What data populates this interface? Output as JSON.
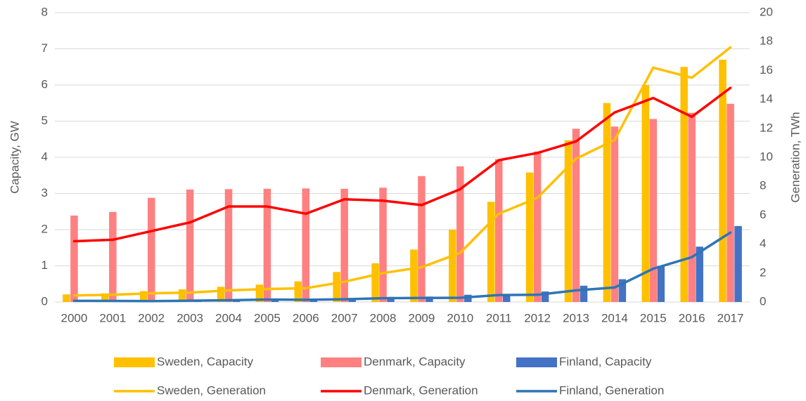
{
  "chart_data": {
    "type": "combo",
    "y_label": "Capacity, GW",
    "y2_label": "Generation, TWh",
    "categories": [
      "2000",
      "2001",
      "2002",
      "2003",
      "2004",
      "2005",
      "2006",
      "2007",
      "2008",
      "2009",
      "2010",
      "2011",
      "2012",
      "2013",
      "2014",
      "2015",
      "2016",
      "2017"
    ],
    "series": [
      {
        "name": "Sweden, Capacity",
        "type": "bar",
        "color": "#ffc000",
        "values": [
          0.21,
          0.24,
          0.3,
          0.35,
          0.42,
          0.48,
          0.57,
          0.83,
          1.07,
          1.45,
          2.0,
          2.77,
          3.58,
          4.47,
          5.5,
          6.0,
          6.5,
          6.7
        ]
      },
      {
        "name": "Denmark, Capacity",
        "type": "bar",
        "color": "#ff8080",
        "values": [
          2.39,
          2.49,
          2.88,
          3.11,
          3.12,
          3.13,
          3.14,
          3.13,
          3.16,
          3.48,
          3.75,
          3.95,
          4.16,
          4.79,
          4.85,
          5.06,
          5.23,
          5.48
        ]
      },
      {
        "name": "Finland, Capacity",
        "type": "bar",
        "color": "#4472c4",
        "values": [
          0.04,
          0.04,
          0.04,
          0.05,
          0.08,
          0.08,
          0.09,
          0.11,
          0.14,
          0.15,
          0.2,
          0.2,
          0.29,
          0.45,
          0.63,
          1.0,
          1.53,
          2.1
        ]
      },
      {
        "name": "Sweden, Generation",
        "type": "line",
        "axis": "y2",
        "color": "#ffc000",
        "values": [
          0.45,
          0.5,
          0.6,
          0.65,
          0.8,
          0.9,
          0.95,
          1.4,
          2.0,
          2.4,
          3.4,
          6.1,
          7.2,
          9.9,
          11.2,
          16.2,
          15.5,
          17.6
        ]
      },
      {
        "name": "Denmark, Generation",
        "type": "line",
        "axis": "y2",
        "color": "#ff0000",
        "values": [
          4.2,
          4.3,
          4.9,
          5.5,
          6.6,
          6.6,
          6.1,
          7.1,
          7.0,
          6.7,
          7.8,
          9.8,
          10.3,
          11.1,
          13.1,
          14.1,
          12.8,
          14.8
        ]
      },
      {
        "name": "Finland, Generation",
        "type": "line",
        "axis": "y2",
        "color": "#2e75b6",
        "values": [
          0.08,
          0.07,
          0.06,
          0.09,
          0.12,
          0.17,
          0.15,
          0.19,
          0.26,
          0.28,
          0.29,
          0.48,
          0.5,
          0.8,
          1.0,
          2.3,
          3.1,
          4.8
        ]
      }
    ],
    "ylim": [
      0,
      8
    ],
    "yticks": [
      0,
      1,
      2,
      3,
      4,
      5,
      6,
      7,
      8
    ],
    "y2lim": [
      0,
      20
    ],
    "y2ticks": [
      0,
      2,
      4,
      6,
      8,
      10,
      12,
      14,
      16,
      18,
      20
    ],
    "grid": true,
    "legend": "bottom"
  }
}
